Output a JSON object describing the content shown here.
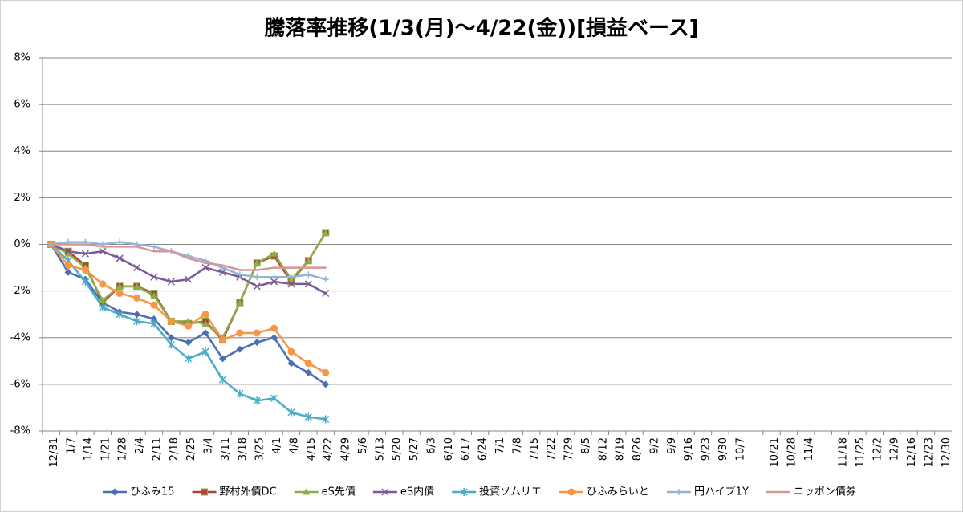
{
  "chart_data": {
    "type": "line",
    "title": "騰落率推移(1/3(月)～4/22(金))[損益ベース]",
    "categories": [
      "12/31",
      "1/7",
      "1/14",
      "1/21",
      "1/28",
      "2/4",
      "2/11",
      "2/18",
      "2/25",
      "3/4",
      "3/11",
      "3/18",
      "3/25",
      "4/1",
      "4/8",
      "4/15",
      "4/22",
      "4/29",
      "5/6",
      "5/13",
      "5/20",
      "5/27",
      "6/3",
      "6/10",
      "6/17",
      "6/24",
      "7/1",
      "7/8",
      "7/15",
      "7/22",
      "7/29",
      "8/5",
      "8/12",
      "8/19",
      "8/26",
      "9/2",
      "9/9",
      "9/16",
      "9/23",
      "9/30",
      "10/7",
      null,
      "10/21",
      "10/28",
      "11/4",
      null,
      "11/18",
      "11/25",
      "12/2",
      "12/9",
      "12/16",
      "12/23",
      "12/30"
    ],
    "ylim": [
      -8,
      8
    ],
    "yticks": [
      {
        "value": -8,
        "label": "-8%"
      },
      {
        "value": -6,
        "label": "-6%"
      },
      {
        "value": -4,
        "label": "-4%"
      },
      {
        "value": -2,
        "label": "-2%"
      },
      {
        "value": 0,
        "label": "0%"
      },
      {
        "value": 2,
        "label": "2%"
      },
      {
        "value": 4,
        "label": "4%"
      },
      {
        "value": 6,
        "label": "6%"
      },
      {
        "value": 8,
        "label": "8%"
      }
    ],
    "grid": true,
    "legend": "bottom",
    "series": [
      {
        "name": "ひふみ15",
        "color": "#4a6fb5",
        "marker": "diamond",
        "values": [
          0,
          -1.2,
          -1.5,
          -2.5,
          -2.9,
          -3.0,
          -3.2,
          -4.0,
          -4.2,
          -3.8,
          -4.9,
          -4.5,
          -4.2,
          -4.0,
          -5.1,
          -5.5,
          -6.0,
          null,
          null,
          null,
          null,
          null,
          null,
          null,
          null,
          null,
          null,
          null,
          null,
          null,
          null,
          null,
          null,
          null,
          null,
          null,
          null,
          null,
          null,
          null,
          null,
          null,
          null,
          null,
          null,
          null,
          null,
          null,
          null,
          null,
          null,
          null,
          null
        ]
      },
      {
        "name": "野村外債DC",
        "color": "#b0413e",
        "marker": "square",
        "values": [
          0,
          -0.3,
          -0.9,
          -2.5,
          -1.8,
          -1.8,
          -2.1,
          -3.3,
          -3.4,
          -3.3,
          -4.1,
          -2.5,
          -0.8,
          -0.5,
          -1.6,
          -0.7,
          0.5,
          null,
          null,
          null,
          null,
          null,
          null,
          null,
          null,
          null,
          null,
          null,
          null,
          null,
          null,
          null,
          null,
          null,
          null,
          null,
          null,
          null,
          null,
          null,
          null,
          null,
          null,
          null,
          null,
          null,
          null,
          null,
          null,
          null,
          null,
          null,
          null
        ]
      },
      {
        "name": "eS先債",
        "color": "#8cad48",
        "marker": "triangle",
        "values": [
          0,
          -0.4,
          -1.0,
          -2.4,
          -1.8,
          -1.8,
          -2.2,
          -3.3,
          -3.3,
          -3.4,
          -4.0,
          -2.5,
          -0.8,
          -0.4,
          -1.5,
          -0.7,
          0.5,
          null,
          null,
          null,
          null,
          null,
          null,
          null,
          null,
          null,
          null,
          null,
          null,
          null,
          null,
          null,
          null,
          null,
          null,
          null,
          null,
          null,
          null,
          null,
          null,
          null,
          null,
          null,
          null,
          null,
          null,
          null,
          null,
          null,
          null,
          null,
          null
        ]
      },
      {
        "name": "eS内債",
        "color": "#7a5a9a",
        "marker": "x",
        "values": [
          0,
          -0.3,
          -0.4,
          -0.3,
          -0.6,
          -1.0,
          -1.4,
          -1.6,
          -1.5,
          -1.0,
          -1.2,
          -1.4,
          -1.8,
          -1.6,
          -1.7,
          -1.7,
          -2.1,
          null,
          null,
          null,
          null,
          null,
          null,
          null,
          null,
          null,
          null,
          null,
          null,
          null,
          null,
          null,
          null,
          null,
          null,
          null,
          null,
          null,
          null,
          null,
          null,
          null,
          null,
          null,
          null,
          null,
          null,
          null,
          null,
          null,
          null,
          null,
          null
        ]
      },
      {
        "name": "投資ソムリエ",
        "color": "#4bacc6",
        "marker": "star",
        "values": [
          0,
          -0.7,
          -1.6,
          -2.7,
          -3.0,
          -3.3,
          -3.4,
          -4.3,
          -4.9,
          -4.6,
          -5.8,
          -6.4,
          -6.7,
          -6.6,
          -7.2,
          -7.4,
          -7.5,
          null,
          null,
          null,
          null,
          null,
          null,
          null,
          null,
          null,
          null,
          null,
          null,
          null,
          null,
          null,
          null,
          null,
          null,
          null,
          null,
          null,
          null,
          null,
          null,
          null,
          null,
          null,
          null,
          null,
          null,
          null,
          null,
          null,
          null,
          null,
          null
        ]
      },
      {
        "name": "ひふみらいと",
        "color": "#f79646",
        "marker": "circle",
        "values": [
          0,
          -0.9,
          -1.1,
          -1.7,
          -2.1,
          -2.3,
          -2.6,
          -3.3,
          -3.5,
          -3.0,
          -4.1,
          -3.8,
          -3.8,
          -3.6,
          -4.6,
          -5.1,
          -5.5,
          null,
          null,
          null,
          null,
          null,
          null,
          null,
          null,
          null,
          null,
          null,
          null,
          null,
          null,
          null,
          null,
          null,
          null,
          null,
          null,
          null,
          null,
          null,
          null,
          null,
          null,
          null,
          null,
          null,
          null,
          null,
          null,
          null,
          null,
          null,
          null
        ]
      },
      {
        "name": "円ハイブ1Y",
        "color": "#95b3d7",
        "marker": "plus",
        "values": [
          0,
          0.1,
          0.1,
          0.0,
          0.1,
          0.0,
          -0.1,
          -0.3,
          -0.5,
          -0.7,
          -1.0,
          -1.3,
          -1.4,
          -1.4,
          -1.4,
          -1.3,
          -1.5,
          null,
          null,
          null,
          null,
          null,
          null,
          null,
          null,
          null,
          null,
          null,
          null,
          null,
          null,
          null,
          null,
          null,
          null,
          null,
          null,
          null,
          null,
          null,
          null,
          null,
          null,
          null,
          null,
          null,
          null,
          null,
          null,
          null,
          null,
          null,
          null
        ]
      },
      {
        "name": "ニッポン債券",
        "color": "#d99694",
        "marker": "none",
        "values": [
          0,
          0.0,
          0.0,
          -0.1,
          -0.1,
          -0.1,
          -0.3,
          -0.3,
          -0.6,
          -0.8,
          -0.9,
          -1.1,
          -1.1,
          -1.0,
          -1.0,
          -1.0,
          -1.0,
          null,
          null,
          null,
          null,
          null,
          null,
          null,
          null,
          null,
          null,
          null,
          null,
          null,
          null,
          null,
          null,
          null,
          null,
          null,
          null,
          null,
          null,
          null,
          null,
          null,
          null,
          null,
          null,
          null,
          null,
          null,
          null,
          null,
          null,
          null,
          null
        ]
      }
    ]
  }
}
